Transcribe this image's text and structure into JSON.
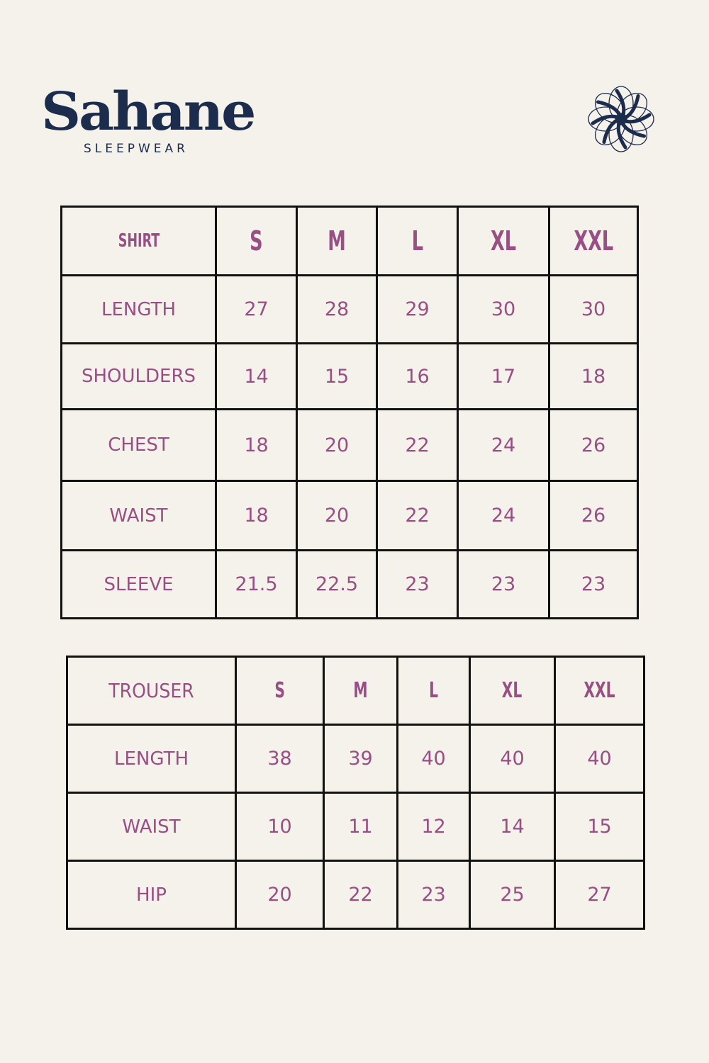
{
  "brand": {
    "name": "Sahane",
    "subtitle": "SLEEPWEAR",
    "color": "#1c2c4c",
    "icon": "flower-logo-icon"
  },
  "colors": {
    "background": "#f5f1eb",
    "text": "#974f84",
    "border": "#111111"
  },
  "shirt": {
    "header": [
      "SHIRT",
      "S",
      "M",
      "L",
      "XL",
      "XXL"
    ],
    "rows": [
      {
        "label": "LENGTH",
        "values": [
          "27",
          "28",
          "29",
          "30",
          "30"
        ]
      },
      {
        "label": "SHOULDERS",
        "values": [
          "14",
          "15",
          "16",
          "17",
          "18"
        ]
      },
      {
        "label": "CHEST",
        "values": [
          "18",
          "20",
          "22",
          "24",
          "26"
        ]
      },
      {
        "label": "WAIST",
        "values": [
          "18",
          "20",
          "22",
          "24",
          "26"
        ]
      },
      {
        "label": "SLEEVE",
        "values": [
          "21.5",
          "22.5",
          "23",
          "23",
          "23"
        ]
      }
    ]
  },
  "trouser": {
    "header": [
      "TROUSER",
      "S",
      "M",
      "L",
      "XL",
      "XXL"
    ],
    "rows": [
      {
        "label": "LENGTH",
        "values": [
          "38",
          "39",
          "40",
          "40",
          "40"
        ]
      },
      {
        "label": "WAIST",
        "values": [
          "10",
          "11",
          "12",
          "14",
          "15"
        ]
      },
      {
        "label": "HIP",
        "values": [
          "20",
          "22",
          "23",
          "25",
          "27"
        ]
      }
    ]
  }
}
